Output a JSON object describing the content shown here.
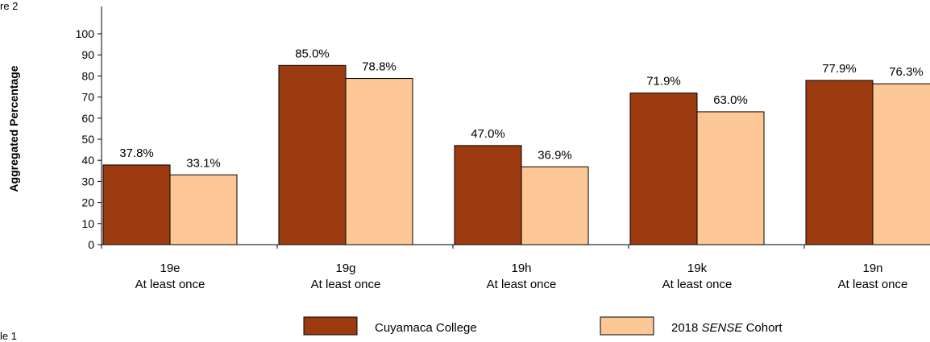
{
  "page": {
    "top_left_fragment": "re 2",
    "bottom_left_fragment": "le 1"
  },
  "chart_data": {
    "type": "bar",
    "title": "",
    "xlabel": "",
    "ylabel": "Aggregated Percentage",
    "ylim": [
      0,
      100
    ],
    "yticks": [
      0,
      10,
      20,
      30,
      40,
      50,
      60,
      70,
      80,
      90,
      100
    ],
    "grid": false,
    "legend_position": "bottom",
    "categories": [
      [
        "19e",
        "At least once"
      ],
      [
        "19g",
        "At least once"
      ],
      [
        "19h",
        "At least once"
      ],
      [
        "19k",
        "At least once"
      ],
      [
        "19n",
        "At least once"
      ]
    ],
    "series": [
      {
        "name_parts": [
          {
            "text": "Cuyamaca College",
            "italic": false
          }
        ],
        "color": "#9c3a10",
        "values": [
          37.8,
          85.0,
          47.0,
          71.9,
          77.9
        ],
        "labels": [
          "37.8%",
          "85.0%",
          "47.0%",
          "71.9%",
          "77.9%"
        ]
      },
      {
        "name_parts": [
          {
            "text": "2018 ",
            "italic": false
          },
          {
            "text": "SENSE",
            "italic": true
          },
          {
            "text": " Cohort",
            "italic": false
          }
        ],
        "color": "#fdc896",
        "values": [
          33.1,
          78.8,
          36.9,
          63.0,
          76.3
        ],
        "labels": [
          "33.1%",
          "78.8%",
          "36.9%",
          "63.0%",
          "76.3%"
        ]
      }
    ]
  }
}
